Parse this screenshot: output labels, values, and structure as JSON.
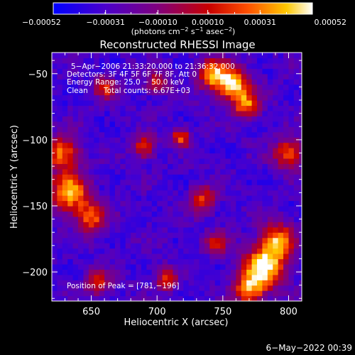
{
  "chart_data": {
    "type": "heatmap",
    "title": "Reconstructed RHESSI Image",
    "xlabel": "Heliocentric X (arcsec)",
    "ylabel": "Heliocentric Y (arcsec)",
    "xlim": [
      620,
      810
    ],
    "ylim": [
      -222,
      -34
    ],
    "x_ticks": [
      650,
      700,
      750,
      800
    ],
    "y_ticks": [
      -200,
      -150,
      -100,
      -50
    ],
    "x_tick_labels": [
      "650",
      "700",
      "750",
      "800"
    ],
    "y_tick_labels": [
      "−200",
      "−150",
      "−100",
      "−50"
    ],
    "colorbar": {
      "range": [
        -0.00052,
        0.00052
      ],
      "ticks": [
        -0.00052,
        -0.00031,
        -0.0001,
        0.0001,
        0.00031,
        0.00052
      ],
      "tick_labels": [
        "−0.00052",
        "−0.00031",
        "−0.00010",
        "0.00010",
        "0.00031",
        "0.00052"
      ],
      "label_text": "(photons cm",
      "label_sup1": "−2",
      "label_mid": " s",
      "label_sup2": "−1",
      "label_mid2": " asec",
      "label_sup3": "−2",
      "label_end": ")",
      "colors": [
        "#0000ff",
        "#4b00cc",
        "#7f007f",
        "#c80000",
        "#ff5000",
        "#ffc800",
        "#ffffff"
      ]
    },
    "annotations": {
      "time": "5−Apr−2006 21:33:20.000 to 21:36:32.000",
      "detectors": "Detectors: 3F 4F 5F 6F 7F 8F, Att 0",
      "energy": "Energy Range: 25.0 − 50.0 keV",
      "clean": "Clean",
      "counts": "Total counts: 6.67E+03",
      "peak": "Position of Peak = [781,−196]"
    },
    "peak": [
      781,
      -196
    ],
    "hotspots": [
      {
        "x": 758,
        "y": -58,
        "amp": 0.00046,
        "sigma": 9
      },
      {
        "x": 742,
        "y": -50,
        "amp": 0.0003,
        "sigma": 8
      },
      {
        "x": 768,
        "y": -74,
        "amp": 0.00024,
        "sigma": 7
      },
      {
        "x": 633,
        "y": -140,
        "amp": 0.00044,
        "sigma": 10
      },
      {
        "x": 628,
        "y": -110,
        "amp": 0.0003,
        "sigma": 9
      },
      {
        "x": 650,
        "y": -158,
        "amp": 0.00026,
        "sigma": 8
      },
      {
        "x": 781,
        "y": -196,
        "amp": 0.00052,
        "sigma": 11
      },
      {
        "x": 792,
        "y": -176,
        "amp": 0.00034,
        "sigma": 9
      },
      {
        "x": 770,
        "y": -214,
        "amp": 0.0003,
        "sigma": 8
      },
      {
        "x": 800,
        "y": -110,
        "amp": 0.00026,
        "sigma": 8
      },
      {
        "x": 735,
        "y": -145,
        "amp": 0.00018,
        "sigma": 7
      },
      {
        "x": 718,
        "y": -98,
        "amp": 0.00026,
        "sigma": 5
      },
      {
        "x": 690,
        "y": -105,
        "amp": 0.0002,
        "sigma": 6
      },
      {
        "x": 660,
        "y": -60,
        "amp": 0.00016,
        "sigma": 6
      },
      {
        "x": 707,
        "y": -205,
        "amp": 0.00016,
        "sigma": 6
      },
      {
        "x": 655,
        "y": -208,
        "amp": 0.00012,
        "sigma": 7
      },
      {
        "x": 700,
        "y": -57,
        "amp": 0.00014,
        "sigma": 6
      },
      {
        "x": 745,
        "y": -178,
        "amp": 0.00012,
        "sigma": 6
      }
    ],
    "baseline": -0.00032,
    "grid": false
  },
  "footer": {
    "date": "6−May−2022 00:39"
  }
}
